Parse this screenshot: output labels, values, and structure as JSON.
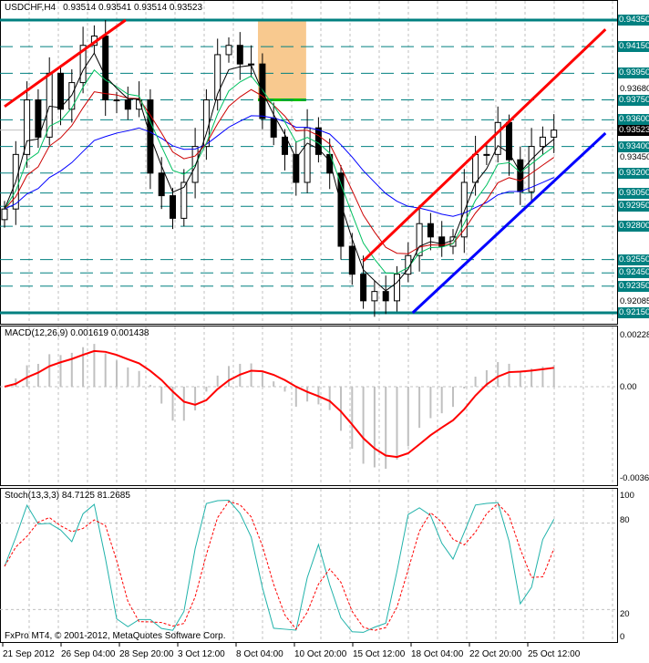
{
  "header": {
    "symbol": "USDCHF,H4",
    "ohlc": "0.93514 0.93541 0.93514 0.93523"
  },
  "footer": {
    "copyright": "FxPro MT4, © 2001-2012, MetaQuotes Software Corp."
  },
  "colors": {
    "level": "#008080",
    "red_trend": "#ff0000",
    "blue_trend": "#0000ff",
    "zone": "#f8c98f",
    "green_level": "#00c000",
    "ma_blue": "#0000ff",
    "ma_red": "#cc0000",
    "ma_green": "#00c060",
    "ma_black": "#000000",
    "stoch_main": "#20b2aa",
    "stoch_signal": "#ff0000",
    "macd_hist": "#c0c0c0",
    "macd_signal": "#ff0000"
  },
  "chart_data": [
    {
      "type": "candlestick",
      "title": "USDCHF,H4",
      "ylim": [
        0.92085,
        0.9435
      ],
      "x_ticks": [
        "21 Sep 2012",
        "26 Sep 04:00",
        "28 Sep 20:00",
        "3 Oct 12:00",
        "8 Oct 04:00",
        "10 Oct 20:00",
        "15 Oct 12:00",
        "18 Oct 04:00",
        "22 Oct 20:00",
        "25 Oct 12:00"
      ],
      "closes": [
        0.9293,
        0.9334,
        0.9375,
        0.9347,
        0.9395,
        0.9368,
        0.9388,
        0.9416,
        0.9423,
        0.9375,
        0.9375,
        0.9368,
        0.9375,
        0.932,
        0.9303,
        0.9286,
        0.9313,
        0.934,
        0.9375,
        0.9409,
        0.9416,
        0.9402,
        0.9402,
        0.9361,
        0.9347,
        0.9334,
        0.9313,
        0.9354,
        0.9334,
        0.932,
        0.9265,
        0.9244,
        0.9224,
        0.9231,
        0.9224,
        0.9244,
        0.9258,
        0.9282,
        0.9272,
        0.9265,
        0.9272,
        0.9313,
        0.9334,
        0.9334,
        0.9358,
        0.933,
        0.9306,
        0.934,
        0.9347,
        0.93523
      ],
      "current_price": "0.93523",
      "levels_solid": [
        "0.94350",
        "0.92150"
      ],
      "levels_dashed": [
        "0.94150",
        "0.93950",
        "0.93750",
        "0.93600",
        "0.93400",
        "0.93200",
        "0.93050",
        "0.92950",
        "0.92800",
        "0.92550",
        "0.92450",
        "0.92350"
      ],
      "axis_ticks": [
        "0.93680",
        "0.93450",
        "0.92085"
      ],
      "trendlines": [
        {
          "color": "red",
          "from": [
            0,
            0.937
          ],
          "to": [
            10.8,
            0.9435
          ]
        },
        {
          "color": "red",
          "from": [
            32,
            0.9254
          ],
          "to": [
            53.6,
            0.9428
          ]
        },
        {
          "color": "blue",
          "from": [
            36.4,
            0.9215
          ],
          "to": [
            53.6,
            0.935
          ]
        }
      ],
      "zone": {
        "from_bar": 22.6,
        "to_bar": 26.9,
        "top": 0.9435,
        "bottom": 0.9375
      },
      "moving_averages": [
        {
          "color": "blue",
          "period": 20
        },
        {
          "color": "red",
          "period": 8
        },
        {
          "color": "green",
          "period": 5
        },
        {
          "color": "black",
          "period": 3
        }
      ]
    },
    {
      "type": "bar+line",
      "title": "MACD(12,26,9) 0.001619 0.001438",
      "ylim": [
        -0.00368,
        0.00228
      ],
      "axis_ticks": [
        "0.00228",
        "0.00",
        "-0.00368"
      ]
    },
    {
      "type": "line",
      "title": "Stoch(13,3,3) 84.7125 81.2685",
      "ylim": [
        0,
        100
      ],
      "axis_ticks": [
        "100",
        "80",
        "20",
        "0"
      ]
    }
  ]
}
